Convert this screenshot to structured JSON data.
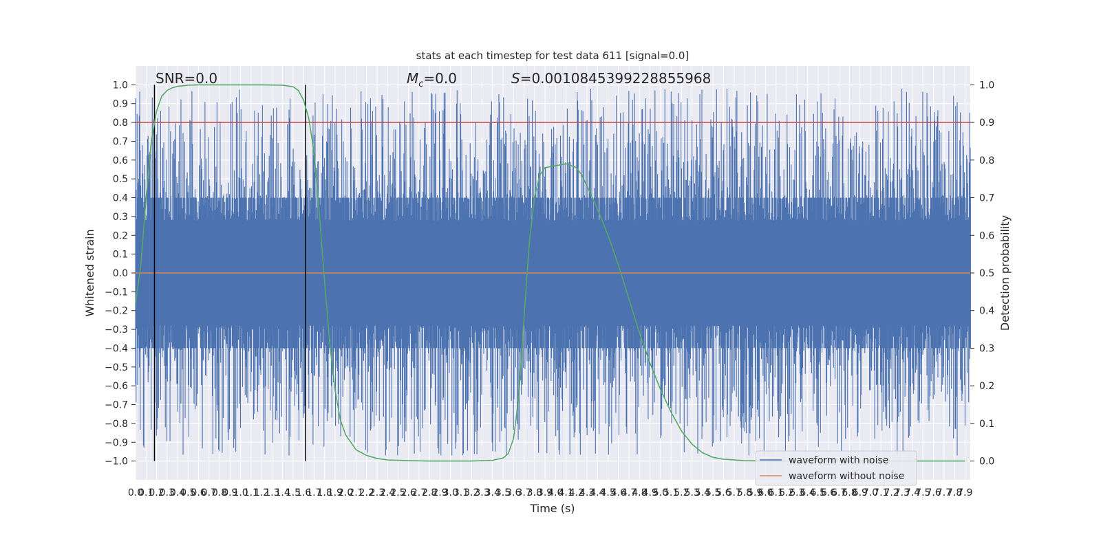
{
  "chart_data": {
    "type": "line",
    "title": "stats at each timestep for test data 611 [signal=0.0]",
    "xlabel": "Time (s)",
    "ylabel": "Whitened strain",
    "y2label": "Detection probability",
    "xlim": [
      0.0,
      7.95
    ],
    "ylim": [
      -1.1,
      1.1
    ],
    "y2lim": [
      -0.05,
      1.05
    ],
    "x_ticks": [
      0.0,
      0.1,
      0.2,
      0.3,
      0.4,
      0.5,
      0.6,
      0.7,
      0.8,
      0.9,
      1.0,
      1.1,
      1.2,
      1.3,
      1.4,
      1.5,
      1.6,
      1.7,
      1.8,
      1.9,
      2.0,
      2.1,
      2.2,
      2.3,
      2.4,
      2.5,
      2.6,
      2.7,
      2.8,
      2.9,
      3.0,
      3.1,
      3.2,
      3.3,
      3.4,
      3.5,
      3.6,
      3.7,
      3.8,
      3.9,
      4.0,
      4.1,
      4.2,
      4.3,
      4.4,
      4.5,
      4.6,
      4.7,
      4.8,
      4.9,
      5.0,
      5.1,
      5.2,
      5.3,
      5.4,
      5.5,
      5.6,
      5.7,
      5.8,
      5.9,
      6.0,
      6.1,
      6.2,
      6.3,
      6.4,
      6.5,
      6.6,
      6.7,
      6.8,
      6.9,
      7.0,
      7.1,
      7.2,
      7.3,
      7.4,
      7.5,
      7.6,
      7.7,
      7.8,
      7.9
    ],
    "y_ticks": [
      -1.0,
      -0.9,
      -0.8,
      -0.7,
      -0.6,
      -0.5,
      -0.4,
      -0.3,
      -0.2,
      -0.1,
      0.0,
      0.1,
      0.2,
      0.3,
      0.4,
      0.5,
      0.6,
      0.7,
      0.8,
      0.9,
      1.0
    ],
    "y2_ticks": [
      0.0,
      0.1,
      0.2,
      0.3,
      0.4,
      0.5,
      0.6,
      0.7,
      0.8,
      0.9,
      1.0
    ],
    "grid": true,
    "legend": {
      "placement": "lower-right",
      "entries": [
        "waveform with noise",
        "waveform without noise"
      ]
    },
    "annotations": {
      "snr": "SNR=0.0",
      "mc_symbol": "M",
      "mc_sub": "c",
      "mc_value": "=0.0",
      "s_symbol": "S",
      "s_value": "=0.0010845399228855968"
    },
    "threshold": {
      "axis": "y2",
      "value": 0.9,
      "color": "#c44e52"
    },
    "vlines_x": [
      0.18,
      1.62
    ],
    "series": [
      {
        "name": "waveform with noise",
        "axis": "y",
        "color": "#4c72b0",
        "generated_noise": {
          "x_start": 0.0,
          "x_end": 7.95,
          "count": 1600,
          "amplitude_min": 0.28,
          "amplitude_max": 0.98
        }
      },
      {
        "name": "waveform without noise",
        "axis": "y",
        "color": "#dd8452",
        "x": [
          0.0,
          7.95
        ],
        "y": [
          0.0,
          0.0
        ]
      },
      {
        "axis": "y2",
        "color": "#55a868",
        "x": [
          0.0,
          0.05,
          0.1,
          0.15,
          0.2,
          0.25,
          0.3,
          0.35,
          0.4,
          0.5,
          0.6,
          0.8,
          1.0,
          1.2,
          1.4,
          1.5,
          1.55,
          1.6,
          1.65,
          1.7,
          1.75,
          1.8,
          1.85,
          1.9,
          1.95,
          2.0,
          2.1,
          2.2,
          2.3,
          2.4,
          2.6,
          2.8,
          3.0,
          3.2,
          3.4,
          3.5,
          3.55,
          3.6,
          3.65,
          3.7,
          3.75,
          3.8,
          3.85,
          3.9,
          4.0,
          4.1,
          4.2,
          4.25,
          4.3,
          4.4,
          4.5,
          4.6,
          4.7,
          4.8,
          4.9,
          5.0,
          5.1,
          5.2,
          5.3,
          5.4,
          5.5,
          5.6,
          5.8,
          6.0,
          6.5,
          7.0,
          7.5,
          7.9
        ],
        "y": [
          0.42,
          0.52,
          0.7,
          0.85,
          0.93,
          0.97,
          0.985,
          0.992,
          0.996,
          0.999,
          1.0,
          1.0,
          1.0,
          1.0,
          0.999,
          0.995,
          0.985,
          0.96,
          0.91,
          0.82,
          0.66,
          0.48,
          0.31,
          0.19,
          0.11,
          0.07,
          0.03,
          0.015,
          0.007,
          0.003,
          0.001,
          0.0,
          0.0,
          0.0,
          0.002,
          0.008,
          0.02,
          0.06,
          0.17,
          0.38,
          0.58,
          0.7,
          0.76,
          0.78,
          0.785,
          0.79,
          0.78,
          0.76,
          0.73,
          0.67,
          0.6,
          0.52,
          0.43,
          0.34,
          0.26,
          0.19,
          0.13,
          0.08,
          0.045,
          0.022,
          0.01,
          0.005,
          0.001,
          0.0,
          0.0,
          0.0,
          0.0,
          0.0
        ]
      }
    ]
  }
}
